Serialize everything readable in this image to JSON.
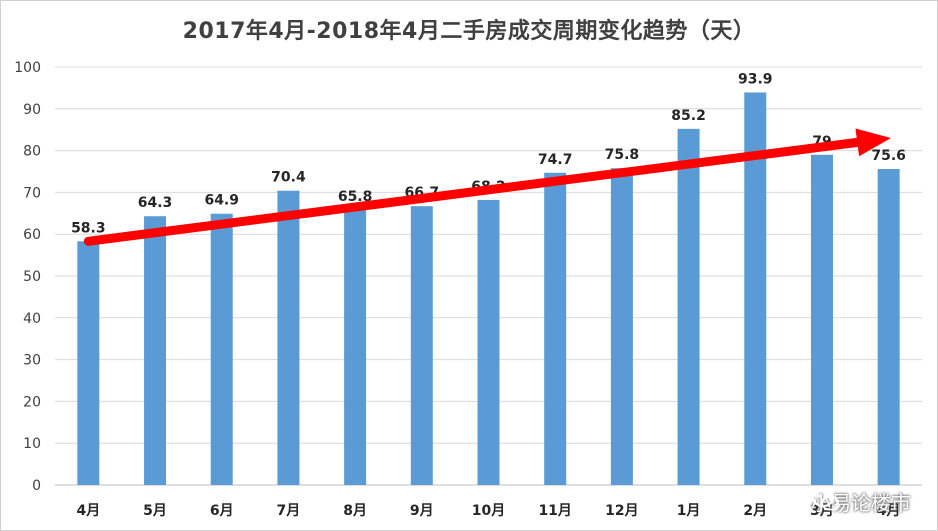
{
  "chart_data": {
    "type": "bar",
    "title": "2017年4月-2018年4月二手房成交周期变化趋势（天）",
    "categories": [
      "4月",
      "5月",
      "6月",
      "7月",
      "8月",
      "9月",
      "10月",
      "11月",
      "12月",
      "1月",
      "2月",
      "3月",
      "4月"
    ],
    "series": [
      {
        "values": [
          58.3,
          64.3,
          64.9,
          70.4,
          65.8,
          66.7,
          68.2,
          74.7,
          75.8,
          85.2,
          93.9,
          79,
          75.6
        ]
      }
    ],
    "data_labels": [
      "58.3",
      "64.3",
      "64.9",
      "70.4",
      "65.8",
      "66.7",
      "68.2",
      "74.7",
      "75.8",
      "85.2",
      "93.9",
      "79",
      "75.6"
    ],
    "ylim": [
      0,
      100
    ],
    "yticks": [
      0,
      10,
      20,
      30,
      40,
      50,
      60,
      70,
      80,
      90,
      100
    ],
    "grid": true,
    "bar_color": "#5b9bd5",
    "trend_arrow": {
      "from_y": 58.3,
      "to_y": 83,
      "color": "#ff0000"
    }
  },
  "watermark": {
    "text": "小易论楼市",
    "icon": "wechat-icon"
  }
}
